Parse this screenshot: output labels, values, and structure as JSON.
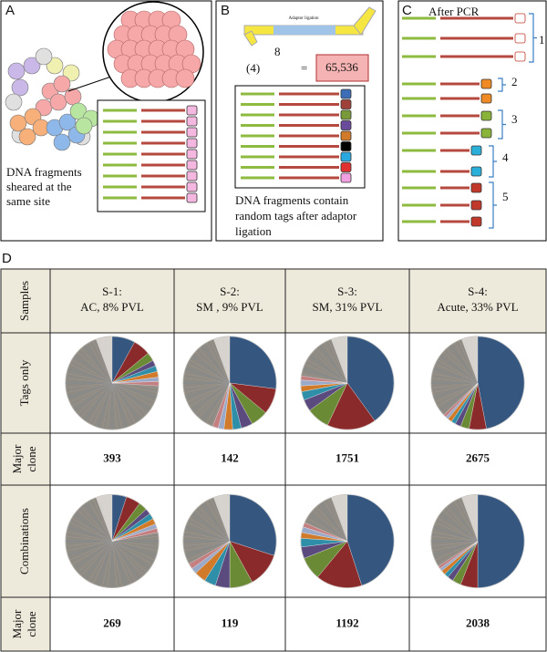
{
  "panel_a": {
    "label": "A",
    "caption": [
      "DNA fragments",
      "sheared at the",
      "same site"
    ]
  },
  "panel_b": {
    "label": "B",
    "adaptor": "Adaptor ligation",
    "base": "(4)",
    "exponent": "8",
    "equals": "=",
    "result": "65,536",
    "caption": [
      "DNA fragments contain",
      "random tags after adaptor",
      "ligation"
    ]
  },
  "panel_c": {
    "label": "C",
    "title": "After PCR",
    "groups": [
      "1",
      "2",
      "3",
      "4",
      "5"
    ]
  },
  "panel_d": {
    "label": "D",
    "header": [
      "Samples",
      [
        "S-1:",
        "AC, 8% PVL"
      ],
      [
        "S-2:",
        "SM , 9% PVL"
      ],
      [
        "S-3:",
        "SM, 31% PVL"
      ],
      [
        "S-4:",
        "Acute, 33% PVL"
      ]
    ],
    "slice_colors": [
      "#34567f",
      "#8b2a2a",
      "#6b8a36",
      "#5a4a7e",
      "#2f8fa8",
      "#d07a2a",
      "#9aa9c8",
      "#c48080"
    ],
    "rows": [
      {
        "label": "Tags only",
        "pies": [
          [
            8,
            6,
            3,
            2,
            2,
            2,
            1.5,
            1.5
          ],
          [
            27,
            9,
            6,
            4,
            3,
            3,
            2,
            2
          ],
          [
            40,
            17,
            8,
            4,
            3,
            2,
            2,
            1.5
          ],
          [
            47,
            6,
            3,
            2,
            1.5,
            1.5,
            1,
            1
          ]
        ]
      },
      {
        "label": [
          "Major",
          "clone"
        ],
        "values": [
          393,
          142,
          1751,
          2675
        ]
      },
      {
        "label": "Combinations",
        "pies": [
          [
            5,
            5,
            3,
            2,
            2,
            2,
            1.5,
            1.5
          ],
          [
            30,
            12,
            8,
            5,
            4,
            4,
            2,
            2
          ],
          [
            45,
            16,
            8,
            4,
            3,
            2,
            2,
            1.5
          ],
          [
            50,
            6,
            3,
            2,
            1.5,
            1.5,
            1,
            1
          ]
        ]
      },
      {
        "label": [
          "Major",
          "clone"
        ],
        "values": [
          269,
          119,
          1192,
          2038
        ]
      }
    ]
  }
}
